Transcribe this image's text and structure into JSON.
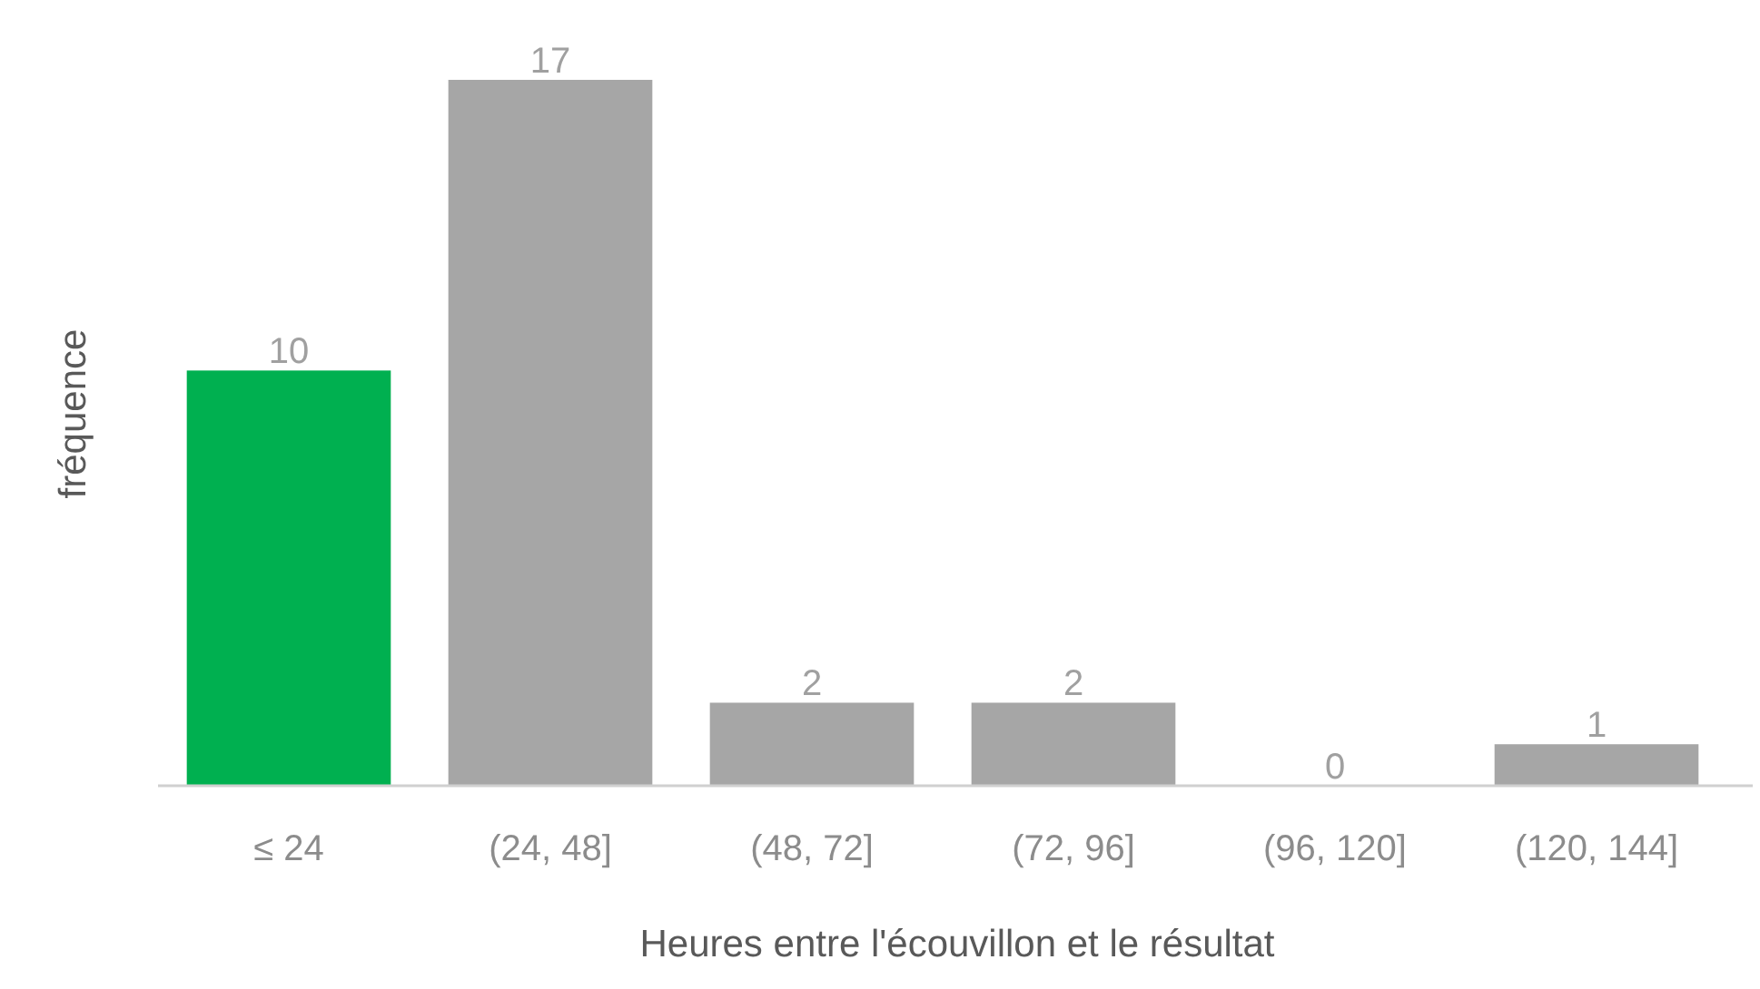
{
  "chart_data": {
    "type": "bar",
    "xlabel": "Heures entre l'écouvillon et le résultat",
    "ylabel": "fréquence",
    "categories": [
      "≤ 24",
      "(24, 48]",
      "(48, 72]",
      "(72, 96]",
      "(96, 120]",
      "(120, 144]"
    ],
    "values": [
      10,
      17,
      2,
      2,
      0,
      1
    ],
    "colors": [
      "#00b050",
      "#a6a6a6",
      "#a6a6a6",
      "#a6a6a6",
      "#a6a6a6",
      "#a6a6a6"
    ],
    "data_labels": true
  }
}
